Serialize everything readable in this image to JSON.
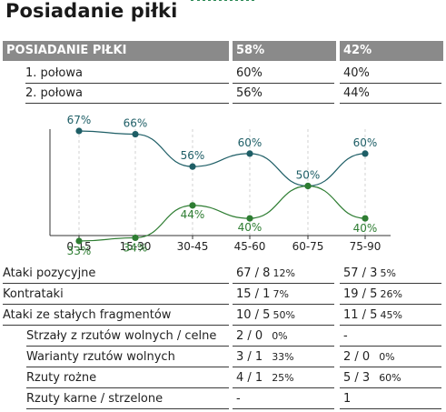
{
  "page": {
    "title": "Posiadanie piłki"
  },
  "possession": {
    "header": {
      "label": "POSIADANIE PIŁKI",
      "home": "58%",
      "away": "42%"
    },
    "rows": [
      {
        "label": "1. połowa",
        "home": "60%",
        "away": "40%"
      },
      {
        "label": "2. połowa",
        "home": "56%",
        "away": "44%"
      }
    ]
  },
  "chart_data": {
    "type": "line",
    "categories": [
      "0-15",
      "15-30",
      "30-45",
      "45-60",
      "60-75",
      "75-90"
    ],
    "series": [
      {
        "values": [
          67,
          66,
          56,
          60,
          50,
          60
        ],
        "color": "#1e5e66"
      },
      {
        "values": [
          33,
          34,
          44,
          40,
          50,
          40
        ],
        "color": "#2e7d32"
      }
    ],
    "ylim": [
      30,
      70
    ],
    "grid": "vertical dashed",
    "labels_home": [
      "67%",
      "66%",
      "56%",
      "60%",
      "50%",
      "60%"
    ],
    "labels_away": [
      "33%",
      "34%",
      "44%",
      "40%",
      "",
      "40%"
    ]
  },
  "attacks": [
    {
      "label": "Ataki pozycyjne",
      "home": "67 / 8",
      "home_pct": "12%",
      "away": "57 / 3",
      "away_pct": "5%"
    },
    {
      "label": "Kontrataki",
      "home": "15 / 1",
      "home_pct": "7%",
      "away": "19 / 5",
      "away_pct": "26%"
    },
    {
      "label": "Ataki ze stałych fragmentów",
      "home": "10 / 5",
      "home_pct": "50%",
      "away": "11 / 5",
      "away_pct": "45%"
    },
    {
      "label": "Strzały z rzutów wolnych / celne",
      "home": "2 / 0",
      "home_pct": "0%",
      "away": "-",
      "away_pct": ""
    },
    {
      "label": "Warianty rzutów wolnych",
      "home": "3 / 1",
      "home_pct": "33%",
      "away": "2 / 0",
      "away_pct": "0%"
    },
    {
      "label": "Rzuty rożne",
      "home": "4 / 1",
      "home_pct": "25%",
      "away": "5 / 3",
      "away_pct": "60%"
    },
    {
      "label": "Rzuty karne / strzelone",
      "home": "-",
      "home_pct": "",
      "away": "1",
      "away_pct": ""
    }
  ]
}
